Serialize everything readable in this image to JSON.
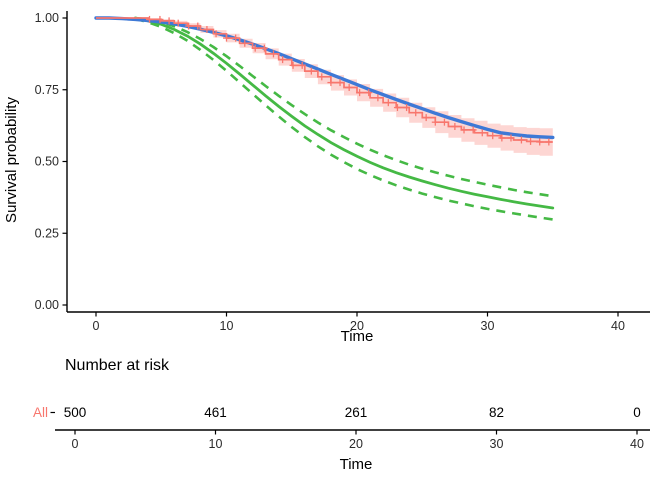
{
  "chart_data": {
    "type": "line",
    "title": "",
    "xlabel": "Time",
    "ylabel": "Survival probability",
    "xlim": [
      0,
      40
    ],
    "ylim": [
      0,
      1
    ],
    "xticks": [
      0,
      10,
      20,
      30,
      40
    ],
    "ytick_labels": [
      "0.00",
      "0.25",
      "0.50",
      "0.75",
      "1.00"
    ],
    "ytick_values": [
      0,
      0.25,
      0.5,
      0.75,
      1
    ],
    "grid": false,
    "legend": "none",
    "colors": {
      "km": "#F8766D",
      "km_band": "#F8766D",
      "km_band_opacity": 0.3,
      "cox": "#3E79D6",
      "green": "#45B945",
      "axis": "#000000"
    },
    "series": [
      {
        "name": "km-estimate",
        "style": "step",
        "color": "#F8766D",
        "times": [
          0,
          1,
          2,
          3,
          4,
          5,
          6,
          7,
          8,
          9,
          10,
          11,
          12,
          13,
          14,
          15,
          16,
          17,
          18,
          19,
          20,
          21,
          22,
          23,
          24,
          25,
          26,
          27,
          28,
          29,
          30,
          31,
          32,
          33,
          34,
          35
        ],
        "surv": [
          1,
          1,
          1,
          1,
          0.995,
          0.99,
          0.982,
          0.972,
          0.96,
          0.945,
          0.93,
          0.912,
          0.895,
          0.875,
          0.855,
          0.835,
          0.815,
          0.795,
          0.775,
          0.758,
          0.74,
          0.722,
          0.705,
          0.688,
          0.67,
          0.653,
          0.637,
          0.622,
          0.61,
          0.6,
          0.59,
          0.582,
          0.575,
          0.57,
          0.568,
          0.568
        ],
        "upper": [
          1,
          1,
          1,
          1,
          0.999,
          0.996,
          0.99,
          0.982,
          0.972,
          0.958,
          0.945,
          0.928,
          0.913,
          0.894,
          0.876,
          0.857,
          0.839,
          0.82,
          0.801,
          0.786,
          0.77,
          0.753,
          0.737,
          0.722,
          0.705,
          0.689,
          0.675,
          0.662,
          0.651,
          0.642,
          0.632,
          0.626,
          0.62,
          0.617,
          0.616,
          0.618
        ],
        "lower": [
          1,
          1,
          1,
          1,
          0.991,
          0.984,
          0.974,
          0.962,
          0.948,
          0.932,
          0.915,
          0.896,
          0.877,
          0.856,
          0.834,
          0.813,
          0.791,
          0.769,
          0.747,
          0.73,
          0.71,
          0.691,
          0.673,
          0.654,
          0.635,
          0.617,
          0.599,
          0.583,
          0.569,
          0.558,
          0.548,
          0.538,
          0.53,
          0.523,
          0.52,
          0.518
        ],
        "censor_times": [
          4.1,
          4.9,
          5.6,
          6.3,
          7.1,
          7.8,
          8.5,
          9.2,
          10,
          10.7,
          11.4,
          12.2,
          12.9,
          13.6,
          14.3,
          15.1,
          15.8,
          16.5,
          17.3,
          18,
          18.7,
          19.4,
          20.2,
          20.9,
          21.6,
          22.4,
          23.1,
          23.8,
          24.5,
          25.3,
          26,
          26.7,
          27.5,
          28.2,
          28.9,
          29.6,
          30.4,
          31.1,
          31.8,
          32.6,
          33.3,
          34,
          34.7
        ]
      },
      {
        "name": "cox-smooth",
        "style": "smooth",
        "color": "#3E79D6",
        "times": [
          0,
          1,
          2,
          3,
          4,
          5,
          6,
          7,
          8,
          9,
          10,
          11,
          12,
          13,
          14,
          15,
          16,
          17,
          18,
          19,
          20,
          21,
          22,
          23,
          24,
          25,
          26,
          27,
          28,
          29,
          30,
          31,
          32,
          33,
          34,
          35
        ],
        "surv": [
          1,
          1,
          0.998,
          0.995,
          0.991,
          0.986,
          0.979,
          0.971,
          0.961,
          0.95,
          0.938,
          0.924,
          0.909,
          0.893,
          0.876,
          0.858,
          0.84,
          0.822,
          0.804,
          0.786,
          0.768,
          0.75,
          0.733,
          0.716,
          0.7,
          0.684,
          0.668,
          0.653,
          0.639,
          0.625,
          0.612,
          0.6,
          0.594,
          0.589,
          0.586,
          0.584
        ]
      },
      {
        "name": "parametric-smooth",
        "style": "smooth-with-dashed-ci",
        "color": "#45B945",
        "times": [
          3,
          4,
          5,
          6,
          7,
          8,
          9,
          10,
          11,
          12,
          13,
          14,
          15,
          16,
          17,
          18,
          19,
          20,
          21,
          22,
          23,
          24,
          25,
          26,
          27,
          28,
          29,
          30,
          31,
          32,
          33,
          34,
          35
        ],
        "surv": [
          1,
          0.99,
          0.978,
          0.96,
          0.937,
          0.909,
          0.877,
          0.842,
          0.805,
          0.767,
          0.729,
          0.692,
          0.657,
          0.624,
          0.594,
          0.566,
          0.541,
          0.518,
          0.497,
          0.478,
          0.461,
          0.446,
          0.432,
          0.419,
          0.407,
          0.396,
          0.386,
          0.377,
          0.368,
          0.36,
          0.352,
          0.345,
          0.338
        ],
        "upper": [
          1,
          0.995,
          0.986,
          0.971,
          0.951,
          0.927,
          0.899,
          0.867,
          0.833,
          0.798,
          0.763,
          0.729,
          0.696,
          0.665,
          0.636,
          0.609,
          0.585,
          0.562,
          0.541,
          0.522,
          0.505,
          0.489,
          0.475,
          0.462,
          0.45,
          0.439,
          0.429,
          0.419,
          0.41,
          0.401,
          0.393,
          0.386,
          0.379
        ],
        "lower": [
          0.998,
          0.985,
          0.969,
          0.947,
          0.921,
          0.889,
          0.854,
          0.816,
          0.776,
          0.736,
          0.696,
          0.657,
          0.62,
          0.585,
          0.553,
          0.524,
          0.498,
          0.474,
          0.453,
          0.434,
          0.417,
          0.402,
          0.388,
          0.376,
          0.364,
          0.354,
          0.344,
          0.335,
          0.327,
          0.319,
          0.312,
          0.305,
          0.298
        ]
      }
    ],
    "risk_table": {
      "title": "Number at risk",
      "row_label": "All",
      "row_label_color": "#F8766D",
      "xlabel": "Time",
      "times": [
        0,
        10,
        20,
        30,
        40
      ],
      "counts": [
        500,
        461,
        261,
        82,
        0
      ]
    }
  }
}
